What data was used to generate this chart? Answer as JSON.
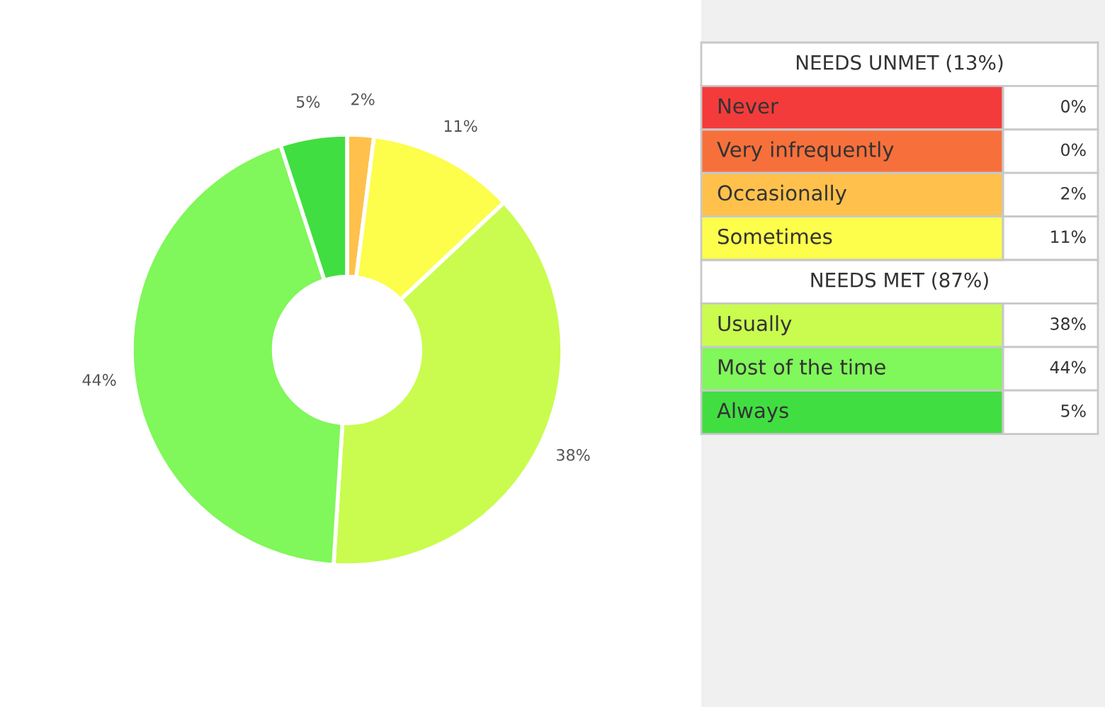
{
  "chart_data": {
    "type": "donut",
    "categories": [
      "Never",
      "Very infrequently",
      "Occasionally",
      "Sometimes",
      "Usually",
      "Most of the time",
      "Always"
    ],
    "values": [
      0,
      0,
      2,
      11,
      38,
      44,
      5
    ],
    "value_labels": [
      "0%",
      "0%",
      "2%",
      "11%",
      "38%",
      "44%",
      "5%"
    ],
    "colors": [
      "#f43b3b",
      "#f7703c",
      "#ffc14b",
      "#fdfd4b",
      "#c9fc4e",
      "#80f75a",
      "#41de41"
    ],
    "annotations": [
      "NEEDS UNMET (13%)",
      "NEEDS MET (87%)"
    ],
    "legend": "right"
  }
}
